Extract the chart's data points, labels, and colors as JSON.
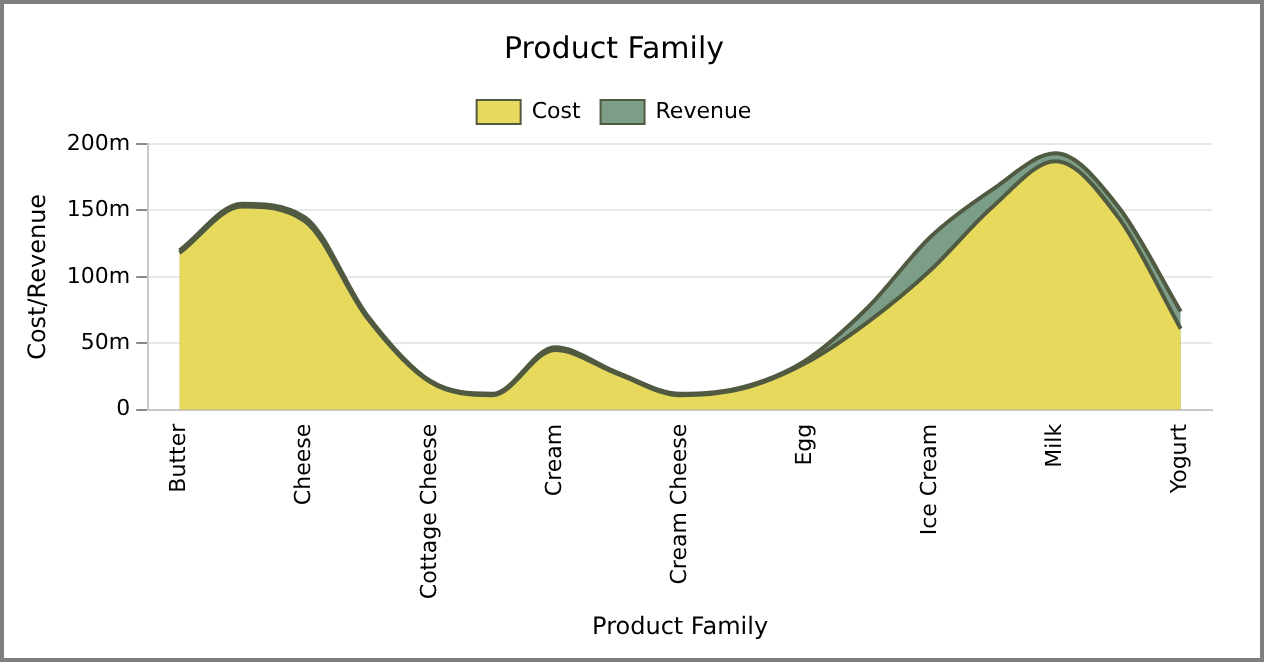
{
  "chart_data": {
    "type": "area",
    "title": "Product Family",
    "xlabel": "Product Family",
    "ylabel": "Cost/Revenue",
    "categories": [
      "Butter",
      null,
      "Cheese",
      null,
      "Cottage Cheese",
      null,
      "Cream",
      null,
      "Cream Cheese",
      null,
      "Egg",
      null,
      "Ice Cream",
      null,
      "Milk",
      null,
      "Yogurt"
    ],
    "series": [
      {
        "name": "Cost",
        "color": "#e6d95c",
        "values": [
          118,
          153,
          142,
          69,
          21,
          11,
          45,
          27,
          11,
          16,
          35,
          66,
          105,
          153,
          187,
          145,
          61
        ]
      },
      {
        "name": "Revenue",
        "color": "#7c9e88",
        "values": [
          120,
          155,
          145,
          71,
          22,
          12,
          47,
          28,
          12,
          17,
          37,
          77,
          130,
          166,
          193,
          153,
          74
        ]
      }
    ],
    "ylim": [
      0,
      200
    ],
    "yticks": [
      0,
      {
        "value": 50,
        "label": "50m"
      },
      {
        "value": 100,
        "label": "100m"
      },
      {
        "value": 150,
        "label": "150m"
      },
      {
        "value": 200,
        "label": "200m"
      }
    ],
    "grid": "y",
    "legend": "top"
  }
}
